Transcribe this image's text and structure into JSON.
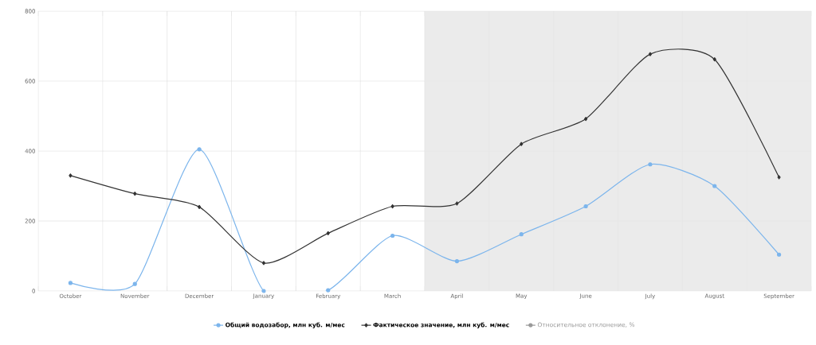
{
  "chart_data": {
    "type": "line",
    "categories": [
      "October",
      "November",
      "December",
      "January",
      "February",
      "March",
      "April",
      "May",
      "June",
      "July",
      "August",
      "September"
    ],
    "series": [
      {
        "name": "Общий водозабор, млн куб. м/мес",
        "color": "#7cb5ec",
        "marker": "circle",
        "values": [
          23,
          20,
          405,
          0,
          2,
          158,
          85,
          162,
          242,
          362,
          300,
          104
        ]
      },
      {
        "name": "Фактическое значение, млн куб. м/мес",
        "color": "#333333",
        "marker": "diamond",
        "values": [
          330,
          278,
          240,
          80,
          165,
          242,
          250,
          420,
          492,
          677,
          662,
          325
        ]
      },
      {
        "name": "Относительное отклонение, %",
        "color": "#999999",
        "marker": "circle",
        "values": [
          null,
          null,
          null,
          null,
          null,
          null,
          null,
          null,
          null,
          null,
          null,
          null
        ]
      }
    ],
    "ylim": [
      0,
      800
    ],
    "yticks": [
      0,
      200,
      400,
      600,
      800
    ],
    "bands": [
      {
        "axis": "x",
        "from": "April",
        "to": "September",
        "color": "#ebebeb"
      }
    ],
    "grid": true,
    "legend": "bottom"
  }
}
